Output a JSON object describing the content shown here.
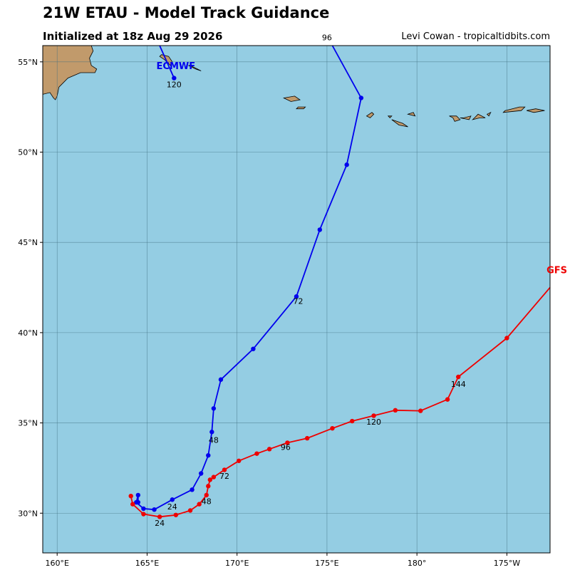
{
  "header": {
    "title": "21W ETAU - Model Track Guidance",
    "subtitle": "Initialized at 18z Aug 29 2026",
    "credit": "Levi Cowan - tropicaltidbits.com"
  },
  "colors": {
    "ocean": "#94cde3",
    "land": "#c19a6b",
    "grid": "#3f6f80",
    "ecmwf": "#0000ee",
    "gfs": "#ee0000"
  },
  "map": {
    "lon_range": [
      159.2,
      187.4
    ],
    "lat_range": [
      27.8,
      55.9
    ],
    "lon_ticks": [
      {
        "lon": 160,
        "label": "160°E"
      },
      {
        "lon": 165,
        "label": "165°E"
      },
      {
        "lon": 170,
        "label": "170°E"
      },
      {
        "lon": 175,
        "label": "175°E"
      },
      {
        "lon": 180,
        "label": "180°"
      },
      {
        "lon": 185,
        "label": "175°W"
      }
    ],
    "lat_ticks": [
      {
        "lat": 30,
        "label": "30°N"
      },
      {
        "lat": 35,
        "label": "35°N"
      },
      {
        "lat": 40,
        "label": "40°N"
      },
      {
        "lat": 45,
        "label": "45°N"
      },
      {
        "lat": 50,
        "label": "50°N"
      },
      {
        "lat": 55,
        "label": "55°N"
      }
    ],
    "land": [
      {
        "name": "kamchatka",
        "pts": [
          [
            159.2,
            53.2
          ],
          [
            159.6,
            53.3
          ],
          [
            159.8,
            53.0
          ],
          [
            159.9,
            52.9
          ],
          [
            160.0,
            53.1
          ],
          [
            160.1,
            53.6
          ],
          [
            160.6,
            54.1
          ],
          [
            161.3,
            54.4
          ],
          [
            162.1,
            54.4
          ],
          [
            162.2,
            54.6
          ],
          [
            161.9,
            54.8
          ],
          [
            161.8,
            55.2
          ],
          [
            162.0,
            55.6
          ],
          [
            161.9,
            55.9
          ],
          [
            159.2,
            55.9
          ]
        ]
      },
      {
        "name": "komandorski-bering",
        "pts": [
          [
            165.8,
            55.4
          ],
          [
            166.2,
            55.3
          ],
          [
            166.4,
            55.0
          ],
          [
            166.3,
            54.8
          ],
          [
            166.0,
            55.1
          ],
          [
            165.7,
            55.3
          ]
        ]
      },
      {
        "name": "komandorski-medny",
        "pts": [
          [
            167.4,
            54.8
          ],
          [
            167.8,
            54.6
          ],
          [
            168.0,
            54.5
          ],
          [
            167.7,
            54.6
          ],
          [
            167.3,
            54.8
          ]
        ]
      },
      {
        "name": "attu",
        "pts": [
          [
            172.6,
            53.0
          ],
          [
            173.2,
            53.1
          ],
          [
            173.5,
            52.9
          ],
          [
            173.0,
            52.8
          ]
        ]
      },
      {
        "name": "agattu",
        "pts": [
          [
            173.4,
            52.5
          ],
          [
            173.8,
            52.5
          ],
          [
            173.7,
            52.4
          ],
          [
            173.3,
            52.4
          ]
        ]
      },
      {
        "name": "kiska",
        "pts": [
          [
            177.2,
            52.0
          ],
          [
            177.5,
            52.2
          ],
          [
            177.6,
            52.1
          ],
          [
            177.4,
            51.9
          ]
        ]
      },
      {
        "name": "tanaga-adak",
        "pts": [
          [
            178.6,
            51.8
          ],
          [
            179.2,
            51.6
          ],
          [
            179.5,
            51.4
          ],
          [
            179.0,
            51.5
          ]
        ]
      },
      {
        "name": "amchitka",
        "pts": [
          [
            178.4,
            52.0
          ],
          [
            178.6,
            52.0
          ],
          [
            178.5,
            51.9
          ]
        ]
      },
      {
        "name": "semisopochnoi",
        "pts": [
          [
            179.5,
            52.1
          ],
          [
            179.8,
            52.2
          ],
          [
            179.9,
            52.0
          ]
        ]
      },
      {
        "name": "atka-group-1",
        "pts": [
          [
            181.8,
            52.0
          ],
          [
            182.2,
            52.0
          ],
          [
            182.4,
            51.8
          ],
          [
            182.1,
            51.7
          ],
          [
            182.0,
            51.9
          ]
        ]
      },
      {
        "name": "atka-group-2",
        "pts": [
          [
            182.4,
            51.9
          ],
          [
            182.9,
            51.8
          ],
          [
            183.0,
            52.0
          ],
          [
            182.6,
            51.9
          ]
        ]
      },
      {
        "name": "atka-group-3",
        "pts": [
          [
            183.1,
            51.8
          ],
          [
            183.5,
            51.9
          ],
          [
            183.8,
            51.9
          ],
          [
            183.4,
            52.1
          ],
          [
            183.2,
            51.9
          ]
        ]
      },
      {
        "name": "atka-group-4",
        "pts": [
          [
            183.9,
            52.1
          ],
          [
            184.1,
            52.2
          ],
          [
            184.0,
            52.0
          ]
        ]
      },
      {
        "name": "umnak-unalaska",
        "pts": [
          [
            184.8,
            52.2
          ],
          [
            185.8,
            52.3
          ],
          [
            186.0,
            52.5
          ],
          [
            185.7,
            52.5
          ],
          [
            185.3,
            52.4
          ],
          [
            184.9,
            52.3
          ]
        ]
      },
      {
        "name": "unalaska-east",
        "pts": [
          [
            186.1,
            52.3
          ],
          [
            186.6,
            52.4
          ],
          [
            187.1,
            52.3
          ],
          [
            186.5,
            52.2
          ]
        ]
      }
    ]
  },
  "chart_data": {
    "type": "line",
    "x_axis": "longitude (°E)",
    "y_axis": "latitude (°N)",
    "series": [
      {
        "name": "ECMWF",
        "color": "#0000ee",
        "points": [
          [
            164.5,
            30.6
          ],
          [
            164.5,
            31.0
          ],
          [
            164.4,
            30.6
          ],
          [
            164.8,
            30.25
          ],
          [
            165.4,
            30.2
          ],
          [
            166.4,
            30.75
          ],
          [
            167.5,
            31.3
          ],
          [
            168.0,
            32.2
          ],
          [
            168.4,
            33.2
          ],
          [
            168.6,
            34.5
          ],
          [
            168.7,
            35.8
          ],
          [
            169.1,
            37.4
          ],
          [
            170.9,
            39.1
          ],
          [
            173.3,
            42.0
          ],
          [
            174.6,
            45.7
          ],
          [
            176.1,
            49.3
          ],
          [
            176.9,
            53.0
          ],
          [
            175.3,
            55.9
          ]
        ],
        "end_point": [
          166.5,
          54.1
        ],
        "end_line": [
          [
            165.7,
            55.9
          ],
          [
            166.5,
            54.1
          ]
        ],
        "labels": [
          {
            "text": "24",
            "lon": 166.4,
            "lat": 30.2
          },
          {
            "text": "48",
            "lon": 168.7,
            "lat": 33.9
          },
          {
            "text": "72",
            "lon": 173.4,
            "lat": 41.6
          },
          {
            "text": "96",
            "lon": 175.0,
            "lat": 56.2
          },
          {
            "text": "120",
            "lon": 166.5,
            "lat": 53.6
          }
        ]
      },
      {
        "name": "GFS",
        "color": "#ee0000",
        "points": [
          [
            164.1,
            30.95
          ],
          [
            164.2,
            30.5
          ],
          [
            164.8,
            29.95
          ],
          [
            165.7,
            29.8
          ],
          [
            166.6,
            29.9
          ],
          [
            167.4,
            30.15
          ],
          [
            167.9,
            30.5
          ],
          [
            168.3,
            31.0
          ],
          [
            168.4,
            31.5
          ],
          [
            168.5,
            31.85
          ],
          [
            168.7,
            32.0
          ],
          [
            169.3,
            32.4
          ],
          [
            170.1,
            32.9
          ],
          [
            171.1,
            33.3
          ],
          [
            171.8,
            33.55
          ],
          [
            172.8,
            33.9
          ],
          [
            173.9,
            34.15
          ],
          [
            175.3,
            34.7
          ],
          [
            176.4,
            35.1
          ],
          [
            177.6,
            35.4
          ],
          [
            178.8,
            35.7
          ],
          [
            180.2,
            35.67
          ],
          [
            181.7,
            36.3
          ],
          [
            182.3,
            37.55
          ],
          [
            185.0,
            39.7
          ],
          [
            187.4,
            42.5
          ]
        ],
        "labels": [
          {
            "text": "24",
            "lon": 165.7,
            "lat": 29.3
          },
          {
            "text": "48",
            "lon": 168.3,
            "lat": 30.5
          },
          {
            "text": "72",
            "lon": 169.3,
            "lat": 31.9
          },
          {
            "text": "96",
            "lon": 172.7,
            "lat": 33.5
          },
          {
            "text": "120",
            "lon": 177.6,
            "lat": 34.9
          },
          {
            "text": "144",
            "lon": 182.3,
            "lat": 37.0
          }
        ]
      }
    ],
    "model_labels": [
      {
        "text": "ECMWF",
        "lon": 166.6,
        "lat": 54.6,
        "color": "#0000ee"
      },
      {
        "text": "GFS",
        "lon": 188.3,
        "lat": 43.3,
        "color": "#ee0000"
      }
    ]
  }
}
